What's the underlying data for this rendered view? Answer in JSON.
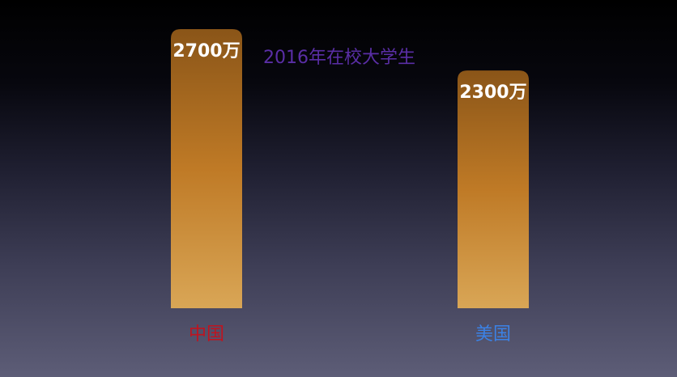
{
  "chart_data": {
    "type": "bar",
    "title": "2016年在校大学生",
    "categories": [
      "中国",
      "美国"
    ],
    "values": [
      2700,
      2300
    ],
    "value_labels": [
      "2700万",
      "2300万"
    ],
    "unit": "万",
    "xlabel": "",
    "ylabel": "",
    "ylim": [
      0,
      2700
    ],
    "grid": false,
    "legend": "none"
  },
  "colors": {
    "title": "#5a2ea6",
    "value_label": "#ffffff",
    "category_labels": [
      "#c0131f",
      "#3b82e6"
    ],
    "bar_top": "#8a5518",
    "bar_mid": "#bf7a26",
    "bar_bottom": "#d9a656"
  }
}
